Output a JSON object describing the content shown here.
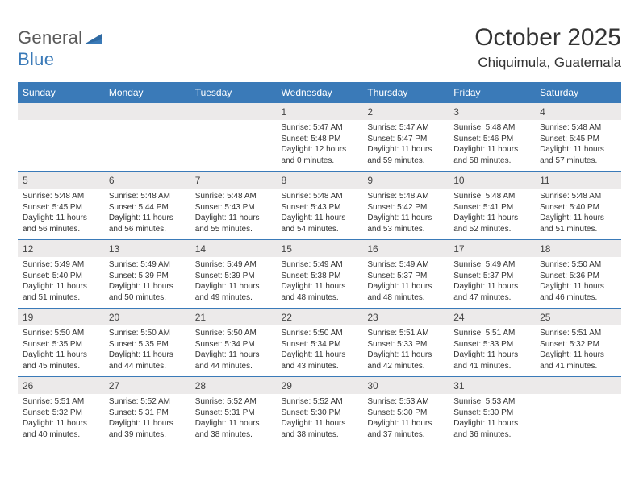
{
  "logo": {
    "text_left": "General",
    "text_right": "Blue"
  },
  "title": "October 2025",
  "location": "Chiquimula, Guatemala",
  "colors": {
    "header_bg": "#3a7ab8",
    "header_fg": "#ffffff",
    "daynum_bg": "#eceaea",
    "rule": "#3a7ab8",
    "text": "#333333",
    "logo_gray": "#5a5a5a",
    "logo_blue": "#3a7ab8"
  },
  "day_labels": [
    "Sunday",
    "Monday",
    "Tuesday",
    "Wednesday",
    "Thursday",
    "Friday",
    "Saturday"
  ],
  "weeks": [
    [
      {
        "n": "",
        "lines": [
          "",
          "",
          "",
          ""
        ]
      },
      {
        "n": "",
        "lines": [
          "",
          "",
          "",
          ""
        ]
      },
      {
        "n": "",
        "lines": [
          "",
          "",
          "",
          ""
        ]
      },
      {
        "n": "1",
        "lines": [
          "Sunrise: 5:47 AM",
          "Sunset: 5:48 PM",
          "Daylight: 12 hours",
          "and 0 minutes."
        ]
      },
      {
        "n": "2",
        "lines": [
          "Sunrise: 5:47 AM",
          "Sunset: 5:47 PM",
          "Daylight: 11 hours",
          "and 59 minutes."
        ]
      },
      {
        "n": "3",
        "lines": [
          "Sunrise: 5:48 AM",
          "Sunset: 5:46 PM",
          "Daylight: 11 hours",
          "and 58 minutes."
        ]
      },
      {
        "n": "4",
        "lines": [
          "Sunrise: 5:48 AM",
          "Sunset: 5:45 PM",
          "Daylight: 11 hours",
          "and 57 minutes."
        ]
      }
    ],
    [
      {
        "n": "5",
        "lines": [
          "Sunrise: 5:48 AM",
          "Sunset: 5:45 PM",
          "Daylight: 11 hours",
          "and 56 minutes."
        ]
      },
      {
        "n": "6",
        "lines": [
          "Sunrise: 5:48 AM",
          "Sunset: 5:44 PM",
          "Daylight: 11 hours",
          "and 56 minutes."
        ]
      },
      {
        "n": "7",
        "lines": [
          "Sunrise: 5:48 AM",
          "Sunset: 5:43 PM",
          "Daylight: 11 hours",
          "and 55 minutes."
        ]
      },
      {
        "n": "8",
        "lines": [
          "Sunrise: 5:48 AM",
          "Sunset: 5:43 PM",
          "Daylight: 11 hours",
          "and 54 minutes."
        ]
      },
      {
        "n": "9",
        "lines": [
          "Sunrise: 5:48 AM",
          "Sunset: 5:42 PM",
          "Daylight: 11 hours",
          "and 53 minutes."
        ]
      },
      {
        "n": "10",
        "lines": [
          "Sunrise: 5:48 AM",
          "Sunset: 5:41 PM",
          "Daylight: 11 hours",
          "and 52 minutes."
        ]
      },
      {
        "n": "11",
        "lines": [
          "Sunrise: 5:48 AM",
          "Sunset: 5:40 PM",
          "Daylight: 11 hours",
          "and 51 minutes."
        ]
      }
    ],
    [
      {
        "n": "12",
        "lines": [
          "Sunrise: 5:49 AM",
          "Sunset: 5:40 PM",
          "Daylight: 11 hours",
          "and 51 minutes."
        ]
      },
      {
        "n": "13",
        "lines": [
          "Sunrise: 5:49 AM",
          "Sunset: 5:39 PM",
          "Daylight: 11 hours",
          "and 50 minutes."
        ]
      },
      {
        "n": "14",
        "lines": [
          "Sunrise: 5:49 AM",
          "Sunset: 5:39 PM",
          "Daylight: 11 hours",
          "and 49 minutes."
        ]
      },
      {
        "n": "15",
        "lines": [
          "Sunrise: 5:49 AM",
          "Sunset: 5:38 PM",
          "Daylight: 11 hours",
          "and 48 minutes."
        ]
      },
      {
        "n": "16",
        "lines": [
          "Sunrise: 5:49 AM",
          "Sunset: 5:37 PM",
          "Daylight: 11 hours",
          "and 48 minutes."
        ]
      },
      {
        "n": "17",
        "lines": [
          "Sunrise: 5:49 AM",
          "Sunset: 5:37 PM",
          "Daylight: 11 hours",
          "and 47 minutes."
        ]
      },
      {
        "n": "18",
        "lines": [
          "Sunrise: 5:50 AM",
          "Sunset: 5:36 PM",
          "Daylight: 11 hours",
          "and 46 minutes."
        ]
      }
    ],
    [
      {
        "n": "19",
        "lines": [
          "Sunrise: 5:50 AM",
          "Sunset: 5:35 PM",
          "Daylight: 11 hours",
          "and 45 minutes."
        ]
      },
      {
        "n": "20",
        "lines": [
          "Sunrise: 5:50 AM",
          "Sunset: 5:35 PM",
          "Daylight: 11 hours",
          "and 44 minutes."
        ]
      },
      {
        "n": "21",
        "lines": [
          "Sunrise: 5:50 AM",
          "Sunset: 5:34 PM",
          "Daylight: 11 hours",
          "and 44 minutes."
        ]
      },
      {
        "n": "22",
        "lines": [
          "Sunrise: 5:50 AM",
          "Sunset: 5:34 PM",
          "Daylight: 11 hours",
          "and 43 minutes."
        ]
      },
      {
        "n": "23",
        "lines": [
          "Sunrise: 5:51 AM",
          "Sunset: 5:33 PM",
          "Daylight: 11 hours",
          "and 42 minutes."
        ]
      },
      {
        "n": "24",
        "lines": [
          "Sunrise: 5:51 AM",
          "Sunset: 5:33 PM",
          "Daylight: 11 hours",
          "and 41 minutes."
        ]
      },
      {
        "n": "25",
        "lines": [
          "Sunrise: 5:51 AM",
          "Sunset: 5:32 PM",
          "Daylight: 11 hours",
          "and 41 minutes."
        ]
      }
    ],
    [
      {
        "n": "26",
        "lines": [
          "Sunrise: 5:51 AM",
          "Sunset: 5:32 PM",
          "Daylight: 11 hours",
          "and 40 minutes."
        ]
      },
      {
        "n": "27",
        "lines": [
          "Sunrise: 5:52 AM",
          "Sunset: 5:31 PM",
          "Daylight: 11 hours",
          "and 39 minutes."
        ]
      },
      {
        "n": "28",
        "lines": [
          "Sunrise: 5:52 AM",
          "Sunset: 5:31 PM",
          "Daylight: 11 hours",
          "and 38 minutes."
        ]
      },
      {
        "n": "29",
        "lines": [
          "Sunrise: 5:52 AM",
          "Sunset: 5:30 PM",
          "Daylight: 11 hours",
          "and 38 minutes."
        ]
      },
      {
        "n": "30",
        "lines": [
          "Sunrise: 5:53 AM",
          "Sunset: 5:30 PM",
          "Daylight: 11 hours",
          "and 37 minutes."
        ]
      },
      {
        "n": "31",
        "lines": [
          "Sunrise: 5:53 AM",
          "Sunset: 5:30 PM",
          "Daylight: 11 hours",
          "and 36 minutes."
        ]
      },
      {
        "n": "",
        "lines": [
          "",
          "",
          "",
          ""
        ]
      }
    ]
  ]
}
